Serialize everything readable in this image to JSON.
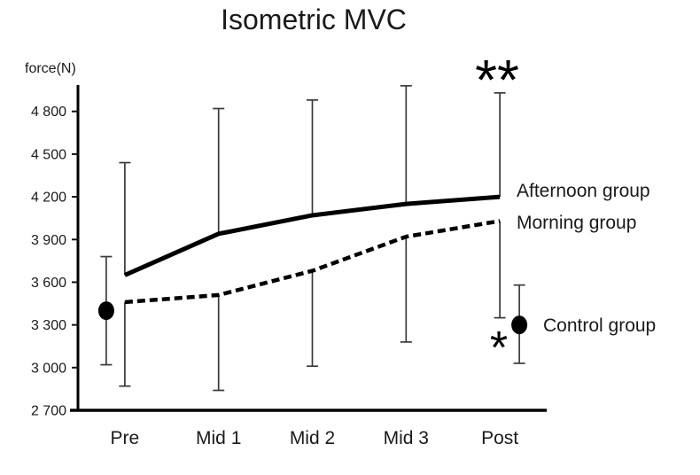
{
  "chart_data": {
    "type": "line",
    "title": "Isometric MVC",
    "ylabel": "force(N)",
    "categories": [
      "Pre",
      "Mid 1",
      "Mid 2",
      "Mid 3",
      "Post"
    ],
    "ylim": [
      2700,
      4985
    ],
    "grid": false,
    "yticks": [
      {
        "value": 4800,
        "label": "4 800"
      },
      {
        "value": 4500,
        "label": "4 500"
      },
      {
        "value": 4200,
        "label": "4 200"
      },
      {
        "value": 3900,
        "label": "3 900"
      },
      {
        "value": 3600,
        "label": "3 600"
      },
      {
        "value": 3300,
        "label": "3 300"
      },
      {
        "value": 3000,
        "label": "3 000"
      },
      {
        "value": 2700,
        "label": "2 700"
      }
    ],
    "series": [
      {
        "name": "Afternoon group",
        "style": "solid",
        "values": [
          3650,
          3940,
          4070,
          4150,
          4200
        ],
        "error_upper": [
          4440,
          4820,
          4880,
          4980,
          4930
        ]
      },
      {
        "name": "Morning group",
        "style": "dashed",
        "values": [
          3460,
          3510,
          3680,
          3920,
          4030
        ],
        "error_lower": [
          2870,
          2840,
          3010,
          3180,
          3350
        ]
      },
      {
        "name": "Control group",
        "style": "marker",
        "points": [
          {
            "category": "Pre",
            "value": 3400,
            "error_low": 3020,
            "error_high": 3780,
            "x_offset": -21
          },
          {
            "category": "Post",
            "value": 3300,
            "error_low": 3030,
            "error_high": 3580,
            "x_offset": 22
          }
        ]
      }
    ],
    "annotations": [
      {
        "text": "**"
      },
      {
        "text": "*"
      }
    ],
    "legend_position": "right-of-line-ends",
    "colors": {
      "lines": "#000000",
      "text": "#1a1a1a",
      "background": "#ffffff"
    }
  }
}
